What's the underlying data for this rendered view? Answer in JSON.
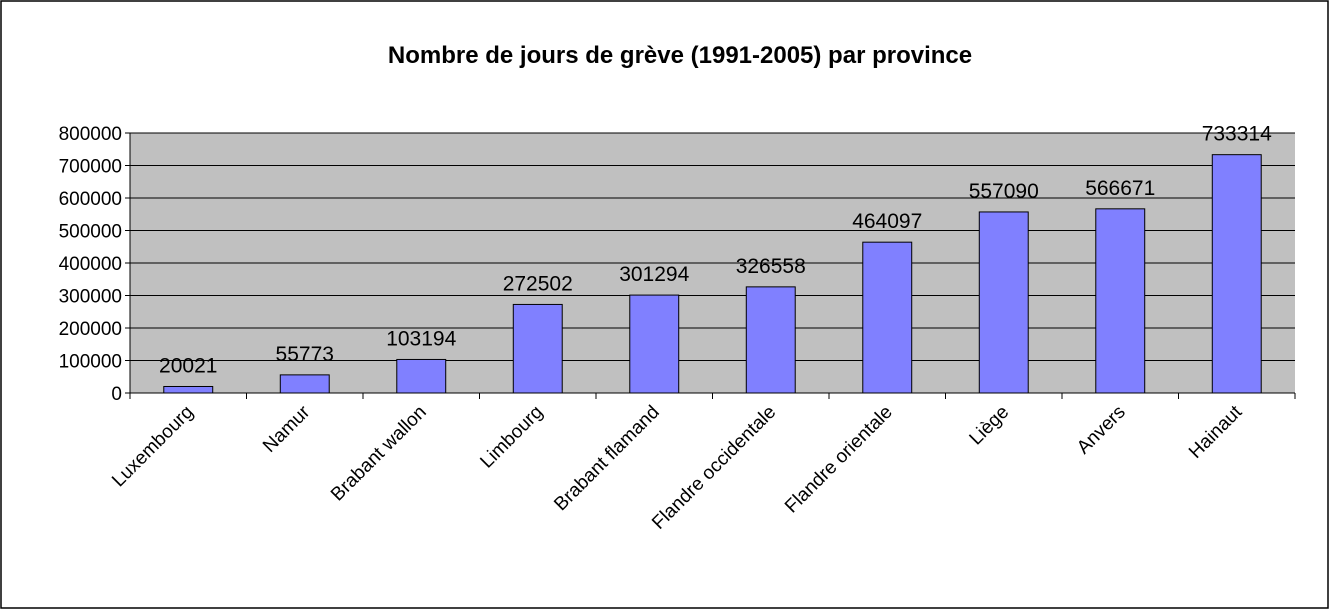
{
  "chart_data": {
    "type": "bar",
    "title": "Nombre de jours de grève (1991-2005) par province",
    "categories": [
      "Luxembourg",
      "Namur",
      "Brabant wallon",
      "Limbourg",
      "Brabant flamand",
      "Flandre occidentale",
      "Flandre orientale",
      "Liège",
      "Anvers",
      "Hainaut"
    ],
    "values": [
      20021,
      55773,
      103194,
      272502,
      301294,
      326558,
      464097,
      557090,
      566671,
      733314
    ],
    "color": "#8080ff",
    "ylim": [
      0,
      800000
    ],
    "yticks": [
      0,
      100000,
      200000,
      300000,
      400000,
      500000,
      600000,
      700000,
      800000
    ],
    "grid": true
  }
}
